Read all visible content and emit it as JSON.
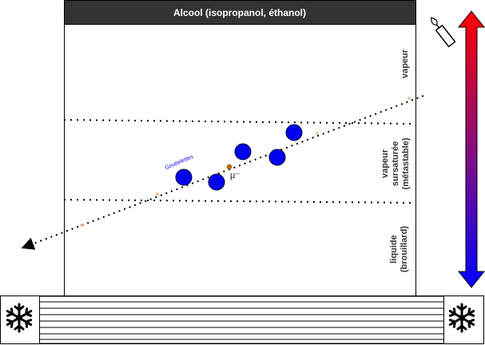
{
  "title": "Alcool (isopropanol, éthanol)",
  "zones": {
    "vapeur": "vapeur",
    "sursaturee_1": "vapeur",
    "sursaturee_2": "sursaturée",
    "sursaturee_3": "(métastable)",
    "liquide_1": "liquide",
    "liquide_2": "(brouillard)"
  },
  "droplets_label": "Gouttelettes",
  "particle_label": "μ⁻",
  "colors": {
    "title_bar": "#333333",
    "droplet": "#0000ee",
    "particle": "#cc6600",
    "hot": "#ff0000",
    "cold": "#0000ff"
  },
  "icons": {
    "heater": "candle-icon",
    "cooler": "snowflake-icon"
  }
}
